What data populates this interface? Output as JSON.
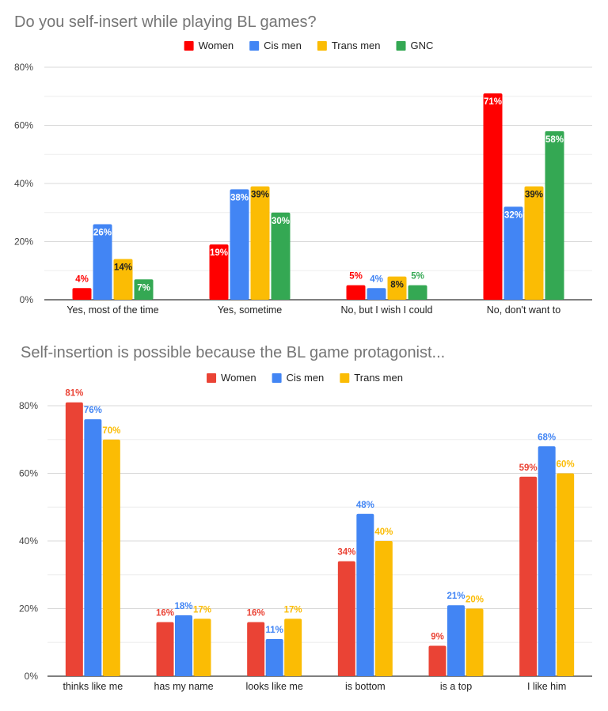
{
  "chart_data": [
    {
      "type": "bar",
      "title": "Do you self-insert while playing BL games?",
      "categories": [
        "Yes, most of the time",
        "Yes, sometime",
        "No, but I wish I could",
        "No, don't want to"
      ],
      "series": [
        {
          "name": "Women",
          "color": "#ff0000",
          "values": [
            4,
            19,
            5,
            71
          ],
          "labels": [
            "4%",
            "19%",
            "5%",
            "71%"
          ]
        },
        {
          "name": "Cis men",
          "color": "#4285f4",
          "values": [
            26,
            38,
            4,
            32
          ],
          "labels": [
            "26%",
            "38%",
            "4%",
            "32%"
          ]
        },
        {
          "name": "Trans men",
          "color": "#fbbc04",
          "values": [
            14,
            39,
            8,
            39
          ],
          "labels": [
            "14%",
            "39%",
            "8%",
            "39%"
          ]
        },
        {
          "name": "GNC",
          "color": "#34a853",
          "values": [
            7,
            30,
            5,
            58
          ],
          "labels": [
            "7%",
            "30%",
            "5%",
            "58%"
          ]
        }
      ],
      "y_ticks": [
        "0%",
        "20%",
        "40%",
        "60%",
        "80%"
      ],
      "ylim": [
        0,
        80
      ],
      "legend": "top",
      "grid": true
    },
    {
      "type": "bar",
      "title": "Self-insertion is possible because the BL game protagonist...",
      "categories": [
        "thinks like me",
        "has my name",
        "looks like me",
        "is bottom",
        "is a top",
        "I like him"
      ],
      "series": [
        {
          "name": "Women",
          "color": "#ea4335",
          "values": [
            81,
            16,
            16,
            34,
            9,
            59
          ],
          "labels": [
            "81%",
            "16%",
            "16%",
            "34%",
            "9%",
            "59%"
          ]
        },
        {
          "name": "Cis men",
          "color": "#4285f4",
          "values": [
            76,
            18,
            11,
            48,
            21,
            68
          ],
          "labels": [
            "76%",
            "18%",
            "11%",
            "48%",
            "21%",
            "68%"
          ]
        },
        {
          "name": "Trans men",
          "color": "#fbbc04",
          "values": [
            70,
            17,
            17,
            40,
            20,
            60
          ],
          "labels": [
            "70%",
            "17%",
            "17%",
            "40%",
            "20%",
            "60%"
          ]
        }
      ],
      "y_ticks": [
        "0%",
        "20%",
        "40%",
        "60%",
        "80%"
      ],
      "ylim": [
        0,
        80
      ],
      "legend": "top",
      "grid": true
    }
  ]
}
